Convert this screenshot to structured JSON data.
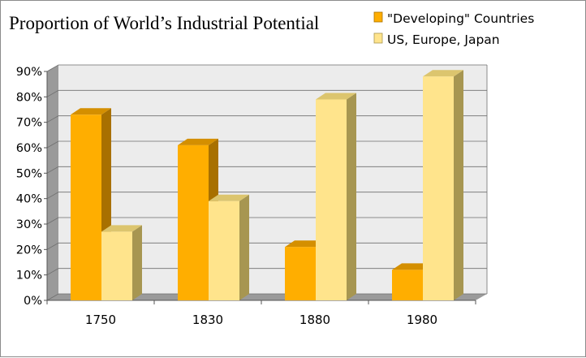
{
  "chart_data": {
    "type": "bar",
    "title": "Proportion of World’s Industrial Potential",
    "xlabel": "",
    "ylabel": "",
    "categories": [
      "1750",
      "1830",
      "1880",
      "1980"
    ],
    "series": [
      {
        "name": "\"Developing\" Countries",
        "values": [
          73,
          61,
          21,
          12
        ],
        "color": "#ffae00",
        "top_color": "#d48f00",
        "side_color": "#a87000"
      },
      {
        "name": "US, Europe, Japan",
        "values": [
          27,
          39,
          79,
          88
        ],
        "color": "#ffe48c",
        "top_color": "#dcc56e",
        "side_color": "#a79651"
      }
    ],
    "ylim": [
      0,
      90
    ],
    "yticks": [
      "0%",
      "10%",
      "20%",
      "30%",
      "40%",
      "50%",
      "60%",
      "70%",
      "80%",
      "90%"
    ],
    "grid": true,
    "legend_position": "top-right",
    "plot_back_color": "#ececec",
    "plot_wall_color": "#9a9a9a"
  }
}
